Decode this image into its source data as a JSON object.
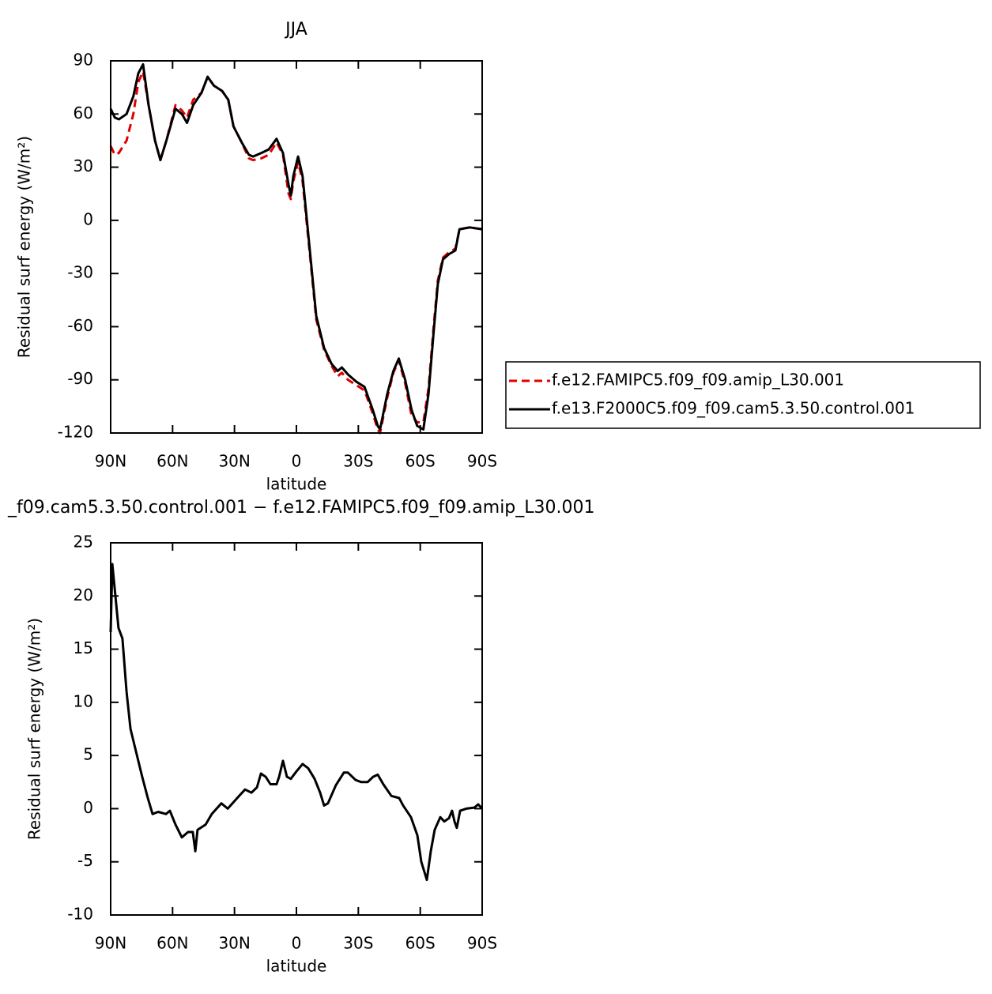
{
  "chart_data": [
    {
      "type": "line",
      "title": "JJA",
      "xlabel": "latitude",
      "ylabel": "Residual surf energy (W/m²)",
      "x": [
        90,
        88,
        86,
        82.3,
        79,
        76.6,
        74.3,
        71.6,
        68.5,
        65.9,
        63,
        58.6,
        55.5,
        53,
        50,
        46,
        43,
        40,
        36,
        33,
        30.5,
        26.5,
        23,
        21,
        17,
        13.4,
        9.6,
        6.5,
        3.8,
        2.7,
        1.5,
        -0.8,
        -3,
        -7,
        -9.6,
        -13.4,
        -17,
        -20,
        -22,
        -25,
        -29,
        -33,
        -37,
        -39.4,
        -40.5,
        -44,
        -47,
        -49.6,
        -52.7,
        -55.8,
        -58.5,
        -61.5,
        -64,
        -66.5,
        -68.5,
        -71,
        -74,
        -77,
        -79,
        -84,
        -90
      ],
      "series": [
        {
          "name": "f.e12.FAMIPC5.f09_f09.amip_L30.001",
          "color": "#e00000",
          "line_style": "dashed",
          "values": [
            42,
            37,
            38,
            45,
            60,
            78,
            84,
            65,
            45,
            34,
            45,
            65,
            62,
            58,
            68,
            72,
            81,
            76,
            73,
            68,
            53,
            44,
            35,
            34,
            35,
            37,
            44,
            37,
            15,
            12,
            22,
            33,
            22,
            -25,
            -56,
            -73,
            -82,
            -88,
            -86,
            -90,
            -93,
            -96,
            -109,
            -118,
            -120,
            -100,
            -86,
            -79,
            -92,
            -110,
            -114,
            -114,
            -95,
            -60,
            -34,
            -21,
            -18,
            -16,
            -5,
            -4,
            -5
          ]
        },
        {
          "name": "f.e13.F2000C5.f09_f09.cam5.3.50.control.001",
          "color": "#000000",
          "line_style": "solid",
          "values": [
            63,
            58,
            57,
            60,
            70,
            83,
            88,
            65,
            45,
            34,
            45,
            63,
            60,
            55,
            65,
            72,
            81,
            76,
            73,
            68,
            53,
            44,
            37,
            36,
            38,
            40,
            46,
            38,
            20,
            14,
            25,
            36,
            25,
            -23,
            -54,
            -72,
            -81,
            -85,
            -83,
            -87,
            -91,
            -94,
            -107,
            -116,
            -118,
            -98,
            -85,
            -78,
            -90,
            -107,
            -116,
            -118,
            -98,
            -63,
            -36,
            -22,
            -19,
            -17,
            -5,
            -4,
            -5
          ]
        }
      ],
      "xlim": [
        90,
        -90
      ],
      "xticks": [
        {
          "value": 90,
          "label": "90N"
        },
        {
          "value": 60,
          "label": "60N"
        },
        {
          "value": 30,
          "label": "30N"
        },
        0,
        {
          "value": -30,
          "label": "30S"
        },
        {
          "value": -60,
          "label": "60S"
        },
        {
          "value": -90,
          "label": "90S"
        }
      ],
      "ylim": [
        -120,
        90
      ],
      "yticks": [
        -120,
        -90,
        -60,
        -30,
        0,
        30,
        60,
        90
      ],
      "legend": "right"
    },
    {
      "type": "line",
      "title": "_f09.cam5.3.50.control.001 − f.e12.FAMIPC5.f09_f09.amip_L30.001",
      "xlabel": "latitude",
      "ylabel": "Residual surf energy (W/m²)",
      "x": [
        90,
        89.2,
        86.2,
        84.3,
        82.3,
        80.4,
        78.5,
        74.7,
        72,
        69.7,
        67,
        63.2,
        61.3,
        58.6,
        55.5,
        52.5,
        50.2,
        49,
        47.9,
        44,
        41,
        36.4,
        33.3,
        28.7,
        24.9,
        21.8,
        19.1,
        17.2,
        14.9,
        12.6,
        9.6,
        8.4,
        6.5,
        4.6,
        2.7,
        0,
        -3,
        -5.7,
        -8.8,
        -11.5,
        -13.4,
        -15.3,
        -19.1,
        -23,
        -24.9,
        -28.7,
        -31.4,
        -34.5,
        -37.2,
        -39.4,
        -42.1,
        -46,
        -49.8,
        -51.7,
        -55.5,
        -58.6,
        -60.5,
        -63.2,
        -65.1,
        -67,
        -69.7,
        -71.6,
        -73.9,
        -75.4,
        -76.6,
        -77.7,
        -79.3,
        -82.3,
        -86.2,
        -88.1,
        -90
      ],
      "series": [
        {
          "color": "#000000",
          "line_style": "solid",
          "values": [
            16.6,
            23,
            17,
            16,
            11,
            7.5,
            6,
            3,
            1,
            -0.5,
            -0.3,
            -0.5,
            -0.2,
            -1.5,
            -2.7,
            -2.2,
            -2.2,
            -4,
            -2,
            -1.5,
            -0.5,
            0.5,
            0,
            1,
            1.8,
            1.5,
            2,
            3.3,
            3,
            2.3,
            2.3,
            3,
            4.5,
            3,
            2.8,
            3.5,
            4.2,
            3.8,
            2.8,
            1.5,
            0.3,
            0.5,
            2.2,
            3.4,
            3.4,
            2.7,
            2.5,
            2.5,
            3,
            3.2,
            2.3,
            1.2,
            1,
            0.3,
            -0.8,
            -2.5,
            -5,
            -6.7,
            -4,
            -2,
            -0.8,
            -1.2,
            -0.9,
            -0.2,
            -1.2,
            -1.8,
            -0.2,
            0,
            0.1,
            0.4,
            0
          ]
        }
      ],
      "xlim": [
        90,
        -90
      ],
      "xticks": [
        {
          "value": 90,
          "label": "90N"
        },
        {
          "value": 60,
          "label": "60N"
        },
        {
          "value": 30,
          "label": "30N"
        },
        0,
        {
          "value": -30,
          "label": "30S"
        },
        {
          "value": -60,
          "label": "60S"
        },
        {
          "value": -90,
          "label": "90S"
        }
      ],
      "ylim": [
        -10,
        25
      ],
      "yticks": [
        -10,
        -5,
        0,
        5,
        10,
        15,
        20,
        25
      ]
    }
  ]
}
